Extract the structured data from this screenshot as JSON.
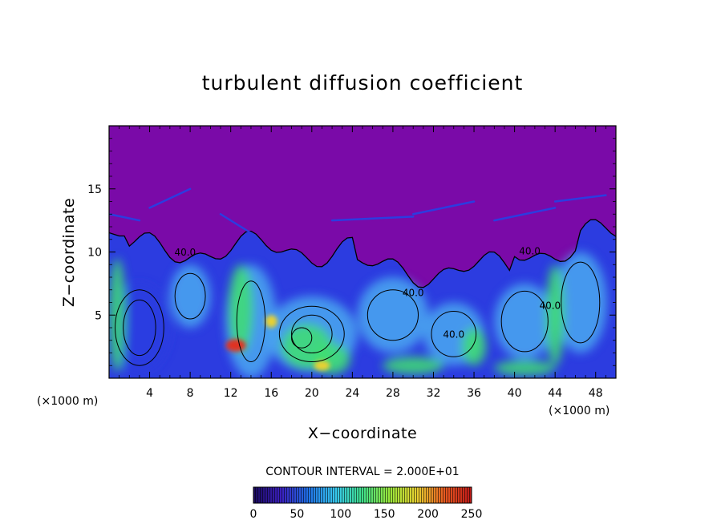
{
  "chart_data": {
    "type": "heatmap",
    "title": "turbulent diffusion coefficient",
    "xlabel": "X−coordinate",
    "ylabel": "Z−coordinate",
    "x_unit_label": "(×1000 m)",
    "y_unit_label": "(×1000 m)",
    "xlim": [
      0,
      50
    ],
    "ylim": [
      0,
      20
    ],
    "x_ticks": [
      4,
      8,
      12,
      16,
      20,
      24,
      28,
      32,
      36,
      40,
      44,
      48
    ],
    "y_ticks": [
      5,
      10,
      15
    ],
    "contour_interval_label": "CONTOUR INTERVAL = 2.000E+01",
    "contour_interval": 20,
    "contour_labels": [
      {
        "text": "40.0",
        "x": 7.5,
        "z": 9.7
      },
      {
        "text": "40.0",
        "x": 30,
        "z": 6.5
      },
      {
        "text": "40.0",
        "x": 41.5,
        "z": 9.8
      },
      {
        "text": "40.0",
        "x": 34,
        "z": 3.2
      },
      {
        "text": "40.0",
        "x": 43.5,
        "z": 5.5
      }
    ],
    "colorbar": {
      "min": 0,
      "max": 250,
      "ticks": [
        0,
        50,
        100,
        150,
        200,
        250
      ],
      "colors": [
        "#1a0a5e",
        "#3b1fbf",
        "#1f6fe6",
        "#37c8f0",
        "#3fe08a",
        "#9ae83a",
        "#e8d030",
        "#e85a20",
        "#c01818"
      ]
    },
    "colors": {
      "background_field": "#7a0aa8",
      "low_turbulence": "#2c3ce0",
      "medium_turbulence": "#4aa8f0",
      "high_turbulence": "#40e070",
      "peak": "#e03020",
      "contour_line": "#000000"
    }
  }
}
